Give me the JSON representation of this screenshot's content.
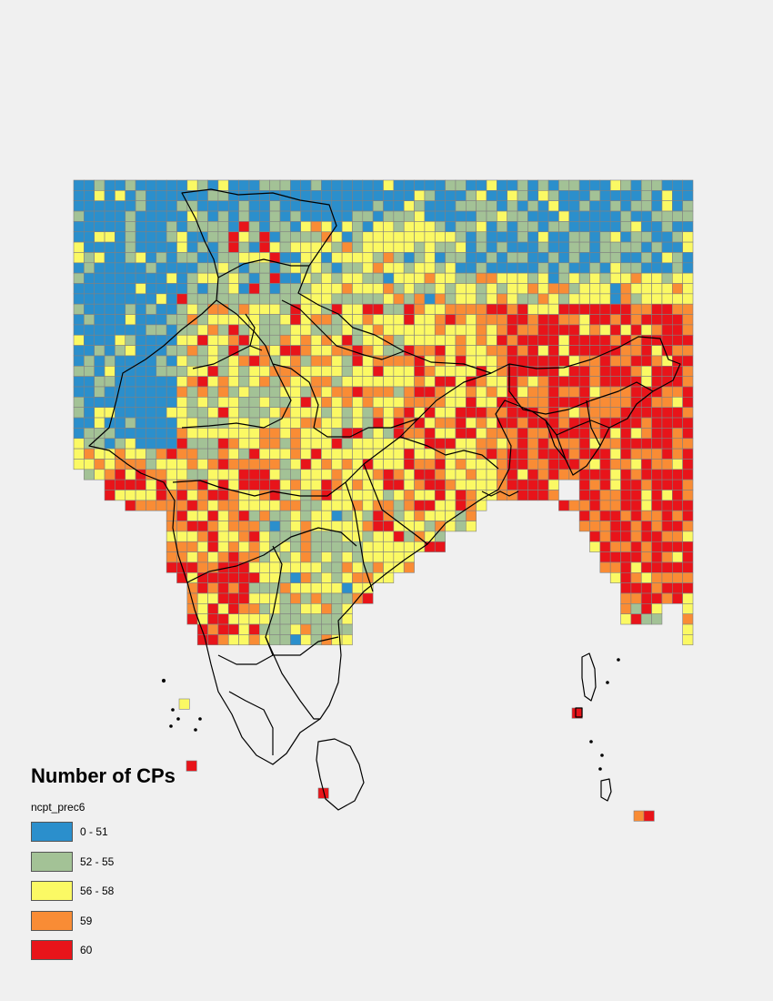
{
  "legend": {
    "title": "Number of CPs",
    "field": "ncpt_prec6",
    "classes": [
      {
        "label": "0 - 51",
        "color": "#2b8fcc"
      },
      {
        "label": "52 - 55",
        "color": "#a3c296"
      },
      {
        "label": "56 - 58",
        "color": "#fbf964"
      },
      {
        "label": "59",
        "color": "#f98c35"
      },
      {
        "label": "60",
        "color": "#e8141a"
      }
    ]
  },
  "map": {
    "grid_line_color": "#808080",
    "boundary_color": "#000000"
  }
}
